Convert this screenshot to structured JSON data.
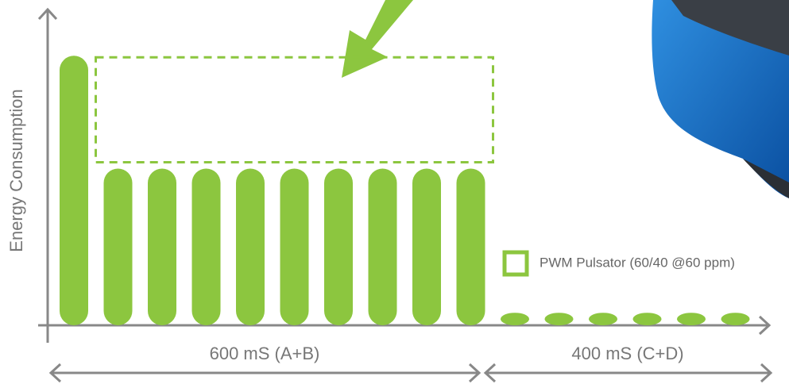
{
  "chart_data": {
    "type": "bar",
    "y_label": "Energy Consumption",
    "categories": [
      null,
      null,
      null,
      null,
      null,
      null,
      null,
      null,
      null,
      null,
      null,
      null,
      null,
      null,
      null,
      null
    ],
    "series": [
      {
        "name": "PWM Pulsator (60/40 @60 ppm)",
        "color": "#8cc63f",
        "values": [
          86,
          50,
          50,
          50,
          50,
          50,
          50,
          50,
          50,
          50,
          4,
          4,
          4,
          4,
          4,
          4
        ]
      }
    ],
    "ylim": [
      0,
      100
    ],
    "annotations": [
      "600 mS (A+B)",
      "400 mS (C+D)"
    ]
  }
}
